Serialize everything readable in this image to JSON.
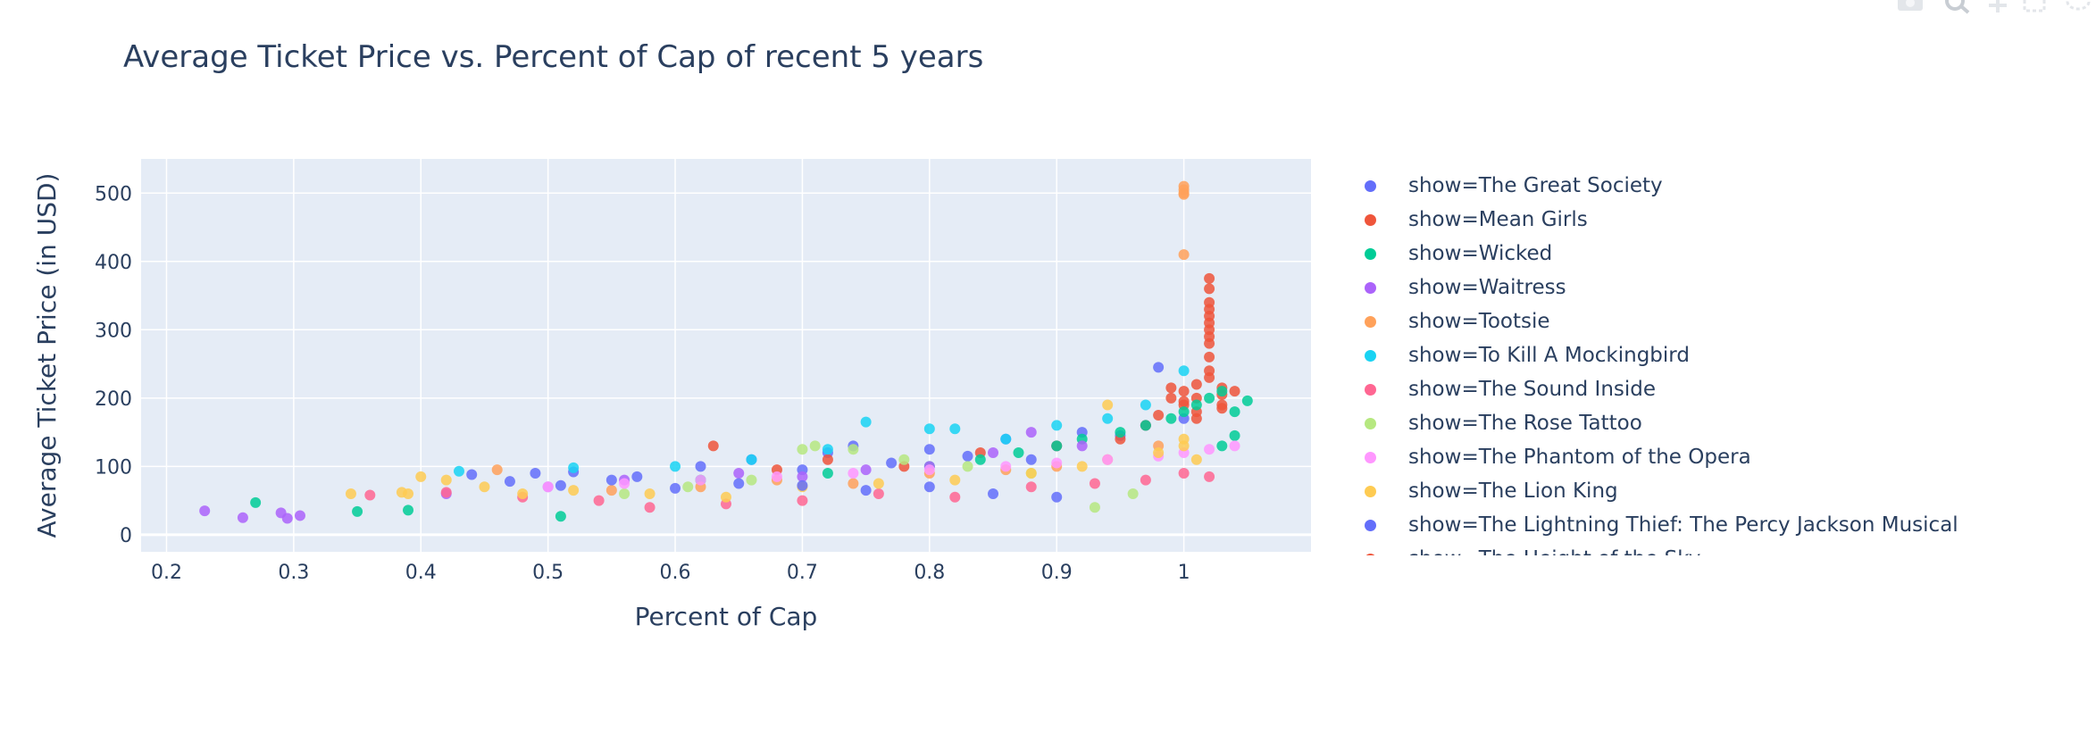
{
  "chart_data": {
    "type": "scatter",
    "title": "Average Ticket Price vs. Percent of Cap  of recent 5 years",
    "xlabel": "Percent of Cap",
    "ylabel": "Average Ticket Price (in USD)",
    "xlim": [
      0.18,
      1.1
    ],
    "ylim": [
      -25,
      550
    ],
    "xticks": [
      0.2,
      0.3,
      0.4,
      0.5,
      0.6,
      0.7,
      0.8,
      0.9,
      1
    ],
    "xtick_labels": [
      "0.2",
      "0.3",
      "0.4",
      "0.5",
      "0.6",
      "0.7",
      "0.8",
      "0.9",
      "1"
    ],
    "yticks": [
      0,
      100,
      200,
      300,
      400,
      500
    ],
    "ytick_labels": [
      "0",
      "100",
      "200",
      "300",
      "400",
      "500"
    ],
    "grid": true,
    "legend_position": "right",
    "series": [
      {
        "name": "show=The Great Society",
        "color": "#636efa",
        "x": [
          0.44,
          0.49,
          0.52,
          0.57,
          0.62,
          0.66,
          0.7,
          0.72,
          0.74,
          0.77,
          0.8,
          0.83,
          0.86,
          0.88,
          0.9,
          0.92,
          0.95,
          0.97,
          0.98,
          1.0
        ],
        "y": [
          88,
          90,
          92,
          85,
          100,
          110,
          95,
          120,
          130,
          105,
          125,
          115,
          140,
          110,
          130,
          150,
          145,
          160,
          245,
          170
        ]
      },
      {
        "name": "show=Mean Girls",
        "color": "#ef553b",
        "x": [
          0.63,
          0.68,
          0.72,
          0.78,
          0.84,
          0.9,
          0.95,
          0.97,
          0.98,
          0.99,
          1.0,
          1.0,
          1.01,
          1.01,
          1.01,
          1.02,
          1.02,
          1.02,
          1.02,
          1.02,
          1.02,
          1.02,
          1.02,
          1.02,
          1.02,
          1.02,
          1.02,
          1.03,
          1.03,
          1.03,
          0.99,
          1.0,
          1.01,
          1.03,
          1.04
        ],
        "y": [
          130,
          95,
          110,
          100,
          120,
          130,
          140,
          160,
          175,
          200,
          190,
          210,
          180,
          200,
          220,
          240,
          260,
          280,
          290,
          300,
          310,
          320,
          330,
          340,
          360,
          375,
          230,
          205,
          215,
          190,
          215,
          195,
          170,
          185,
          210
        ]
      },
      {
        "name": "show=Wicked",
        "color": "#00cc96",
        "x": [
          0.27,
          0.35,
          0.39,
          0.51,
          0.62,
          0.72,
          0.8,
          0.84,
          0.87,
          0.9,
          0.92,
          0.95,
          0.97,
          0.99,
          1.0,
          1.01,
          1.02,
          1.03,
          1.04,
          1.05,
          1.04,
          1.03
        ],
        "y": [
          47,
          34,
          36,
          27,
          80,
          90,
          100,
          110,
          120,
          130,
          140,
          150,
          160,
          170,
          180,
          190,
          200,
          210,
          180,
          196,
          145,
          130
        ]
      },
      {
        "name": "show=Waitress",
        "color": "#ab63fa",
        "x": [
          0.23,
          0.26,
          0.29,
          0.295,
          0.305,
          0.42,
          0.5,
          0.56,
          0.65,
          0.7,
          0.75,
          0.8,
          0.85,
          0.88,
          0.92
        ],
        "y": [
          35,
          25,
          32,
          24,
          28,
          60,
          70,
          80,
          90,
          85,
          95,
          100,
          120,
          150,
          130
        ]
      },
      {
        "name": "show=Tootsie",
        "color": "#ffa15a",
        "x": [
          0.46,
          0.55,
          0.62,
          0.68,
          0.74,
          0.8,
          0.86,
          0.9,
          0.94,
          0.98,
          1.0,
          1.0,
          1.0,
          1.0,
          1.0
        ],
        "y": [
          95,
          65,
          70,
          80,
          75,
          90,
          95,
          100,
          110,
          130,
          510,
          505,
          498,
          500,
          410
        ]
      },
      {
        "name": "show=To Kill A Mockingbird",
        "color": "#19d3f3",
        "x": [
          0.43,
          0.52,
          0.6,
          0.66,
          0.72,
          0.75,
          0.8,
          0.82,
          0.86,
          0.9,
          0.94,
          0.97,
          1.0
        ],
        "y": [
          93,
          98,
          100,
          110,
          125,
          165,
          155,
          155,
          140,
          160,
          170,
          190,
          240
        ]
      },
      {
        "name": "show=The Sound Inside",
        "color": "#ff6692",
        "x": [
          0.36,
          0.42,
          0.48,
          0.54,
          0.58,
          0.64,
          0.7,
          0.76,
          0.82,
          0.88,
          0.93,
          0.97,
          1.0,
          1.02
        ],
        "y": [
          58,
          62,
          55,
          50,
          40,
          45,
          50,
          60,
          55,
          70,
          75,
          80,
          90,
          85
        ]
      },
      {
        "name": "show=The Rose Tattoo",
        "color": "#b6e880",
        "x": [
          0.56,
          0.61,
          0.66,
          0.7,
          0.71,
          0.74,
          0.78,
          0.83,
          0.88,
          0.93,
          0.96
        ],
        "y": [
          60,
          70,
          80,
          125,
          130,
          125,
          110,
          100,
          90,
          40,
          60
        ]
      },
      {
        "name": "show=The Phantom of the Opera",
        "color": "#ff97ff",
        "x": [
          0.5,
          0.56,
          0.62,
          0.68,
          0.74,
          0.8,
          0.86,
          0.9,
          0.94,
          0.98,
          1.0,
          1.02,
          1.04
        ],
        "y": [
          70,
          75,
          80,
          85,
          90,
          95,
          100,
          105,
          110,
          115,
          120,
          125,
          130
        ]
      },
      {
        "name": "show=The Lion King",
        "color": "#fecb52",
        "x": [
          0.345,
          0.385,
          0.39,
          0.4,
          0.42,
          0.45,
          0.48,
          0.52,
          0.58,
          0.64,
          0.7,
          0.76,
          0.82,
          0.88,
          0.92,
          0.94,
          0.98,
          1.0,
          1.0,
          1.01
        ],
        "y": [
          60,
          62,
          60,
          85,
          80,
          70,
          60,
          65,
          60,
          55,
          70,
          75,
          80,
          90,
          100,
          190,
          120,
          130,
          140,
          110
        ]
      },
      {
        "name": "show=The Lightning Thief: The Percy Jackson Musical",
        "color": "#636efa",
        "x": [
          0.47,
          0.51,
          0.55,
          0.6,
          0.65,
          0.7,
          0.75,
          0.8,
          0.85,
          0.9
        ],
        "y": [
          78,
          72,
          80,
          68,
          75,
          72,
          65,
          70,
          60,
          55
        ]
      },
      {
        "name": "show=The Height of the Sky",
        "color": "#ef553b",
        "x": [],
        "y": []
      }
    ]
  }
}
